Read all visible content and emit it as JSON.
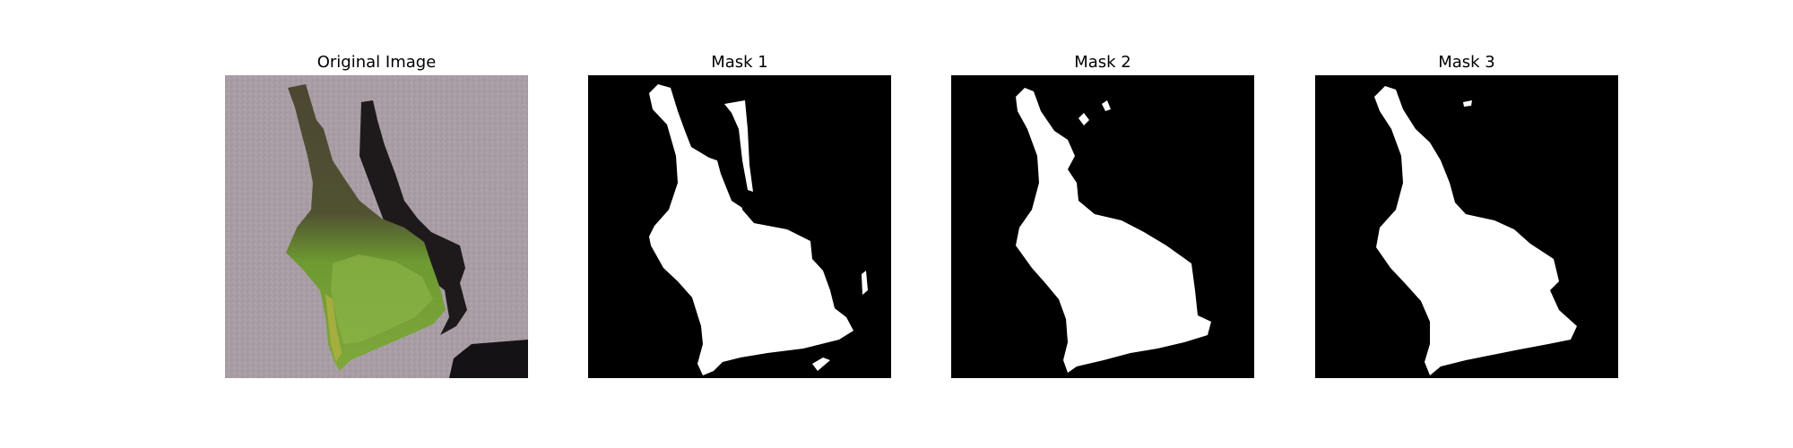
{
  "figure": {
    "panels": [
      {
        "title": "Original Image"
      },
      {
        "title": "Mask 1"
      },
      {
        "title": "Mask 2"
      },
      {
        "title": "Mask 3"
      }
    ]
  },
  "colors": {
    "mask_background": "#000000",
    "mask_foreground": "#ffffff",
    "pavement": "#a79ca3",
    "leaf_green": "#6f9a2e",
    "leaf_dark": "#4a4a30",
    "shadow": "#1e1a1c"
  }
}
